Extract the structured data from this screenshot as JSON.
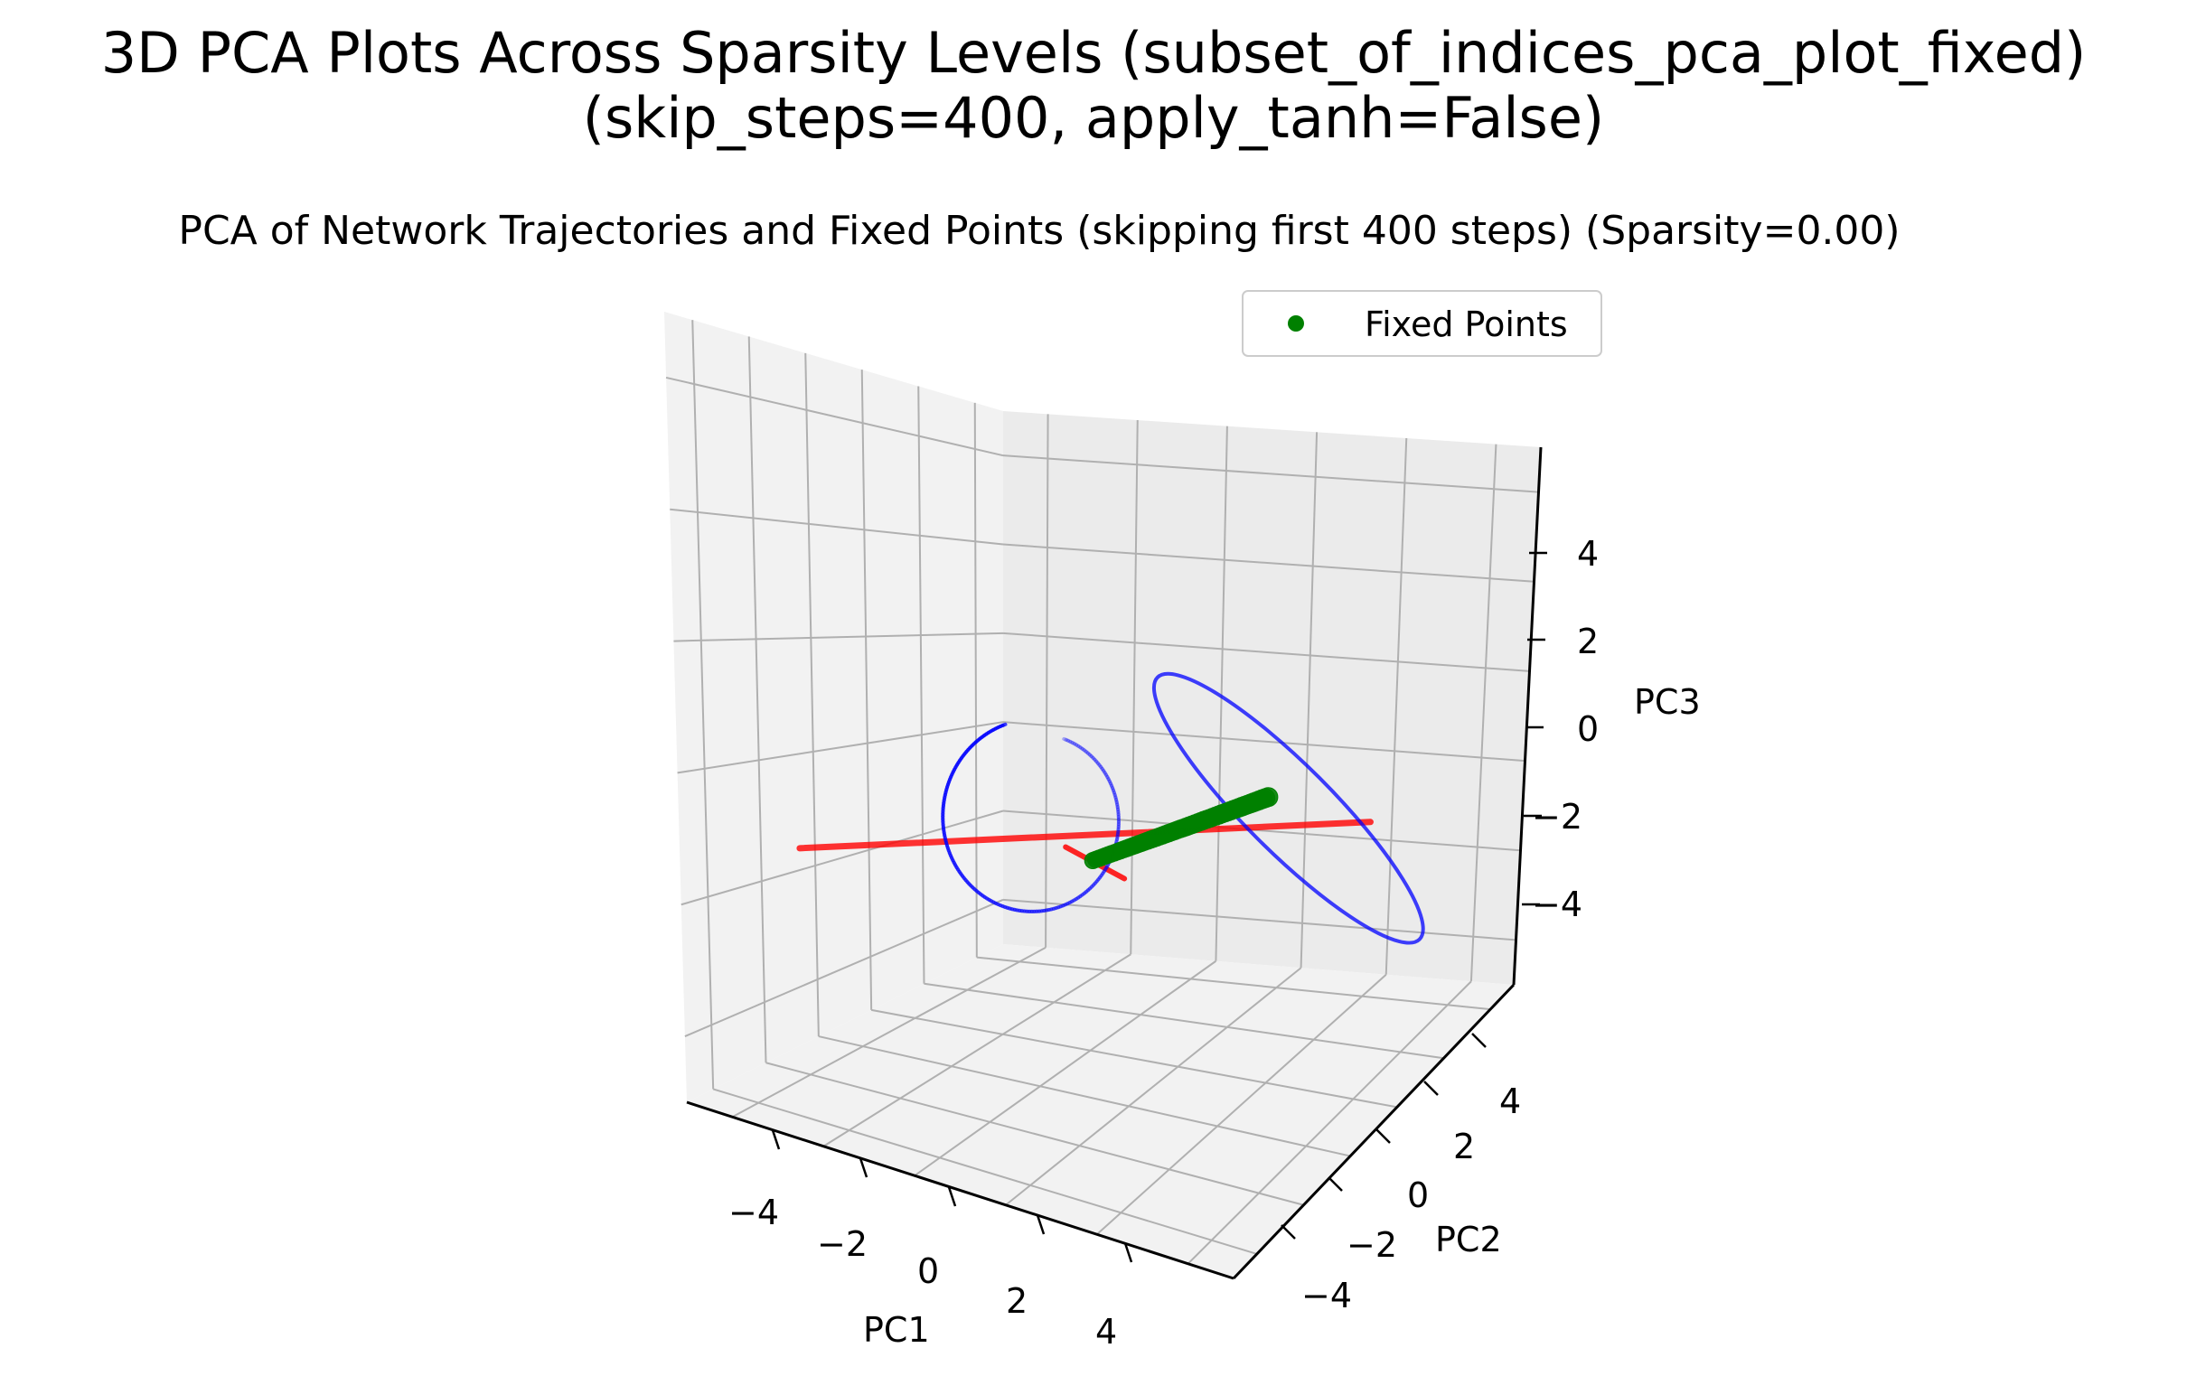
{
  "figure": {
    "suptitle_line1": "3D PCA Plots Across Sparsity Levels (subset_of_indices_pca_plot_fixed)",
    "suptitle_line2": "(skip_steps=400, apply_tanh=False)"
  },
  "chart_data": {
    "type": "scatter",
    "projection": "3d",
    "title": "PCA of Network Trajectories and Fixed Points (skipping first 400 steps) (Sparsity=0.00)",
    "xlabel": "PC1",
    "ylabel": "PC2",
    "zlabel": "PC3",
    "xticks": [
      "−4",
      "−2",
      "0",
      "2",
      "4"
    ],
    "yticks": [
      "−4",
      "−2",
      "0",
      "2",
      "4"
    ],
    "zticks": [
      "−4",
      "−2",
      "0",
      "2",
      "4"
    ],
    "xlim": [
      -6,
      6
    ],
    "ylim": [
      -6,
      6
    ],
    "zlim": [
      -6,
      6
    ],
    "grid": true,
    "legend": {
      "position": "top-right",
      "entries": [
        "Fixed Points"
      ]
    },
    "colors": {
      "fixed_points": "#008000",
      "trajectory": "#0000ff",
      "unstable_direction": "#ff0000",
      "pane_left": "#f2f2f2",
      "pane_back": "#ebebeb",
      "pane_floor": "#f2f2f2",
      "grid": "#b0b0b0"
    },
    "series": [
      {
        "name": "Fixed Points",
        "kind": "scatter",
        "note": "dense line of points from about (0,0,-2) to (4.5,0,0)",
        "start": [
          0.0,
          0.0,
          -2.0
        ],
        "end": [
          4.5,
          0.0,
          0.0
        ],
        "count": 60
      },
      {
        "kind": "trajectory-loop",
        "center": [
          4.0,
          0.0,
          0.0
        ]
      },
      {
        "kind": "trajectory-spiral",
        "center": [
          -1.5,
          0.0,
          -2.0
        ]
      },
      {
        "kind": "line",
        "from": [
          -7.0,
          0.0,
          -3.0
        ],
        "to": [
          7.0,
          0.0,
          0.0
        ]
      }
    ]
  }
}
